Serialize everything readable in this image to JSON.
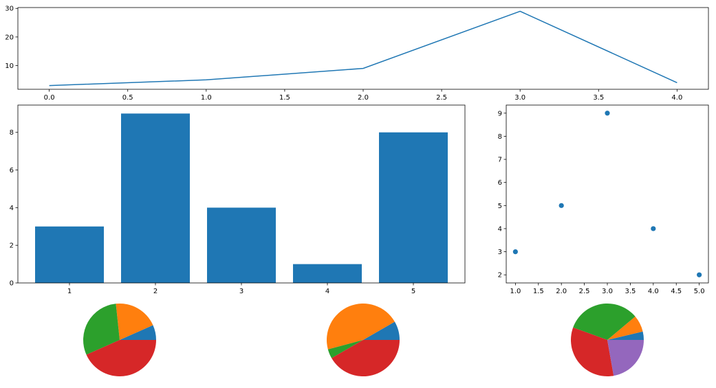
{
  "colors": {
    "c0": "#1f77b4",
    "c1": "#ff7f0e",
    "c2": "#2ca02c",
    "c3": "#d62728",
    "c4": "#9467bd"
  },
  "chart_data": [
    {
      "type": "line",
      "x": [
        0,
        1,
        2,
        3,
        4
      ],
      "y": [
        3,
        5,
        9,
        29,
        4
      ],
      "xticks": [
        "0.0",
        "0.5",
        "1.0",
        "1.5",
        "2.0",
        "2.5",
        "3.0",
        "3.5",
        "4.0"
      ],
      "yticks": [
        "10",
        "20",
        "30"
      ],
      "xlim": [
        -0.2,
        4.2
      ],
      "ylim": [
        1.7,
        30.3
      ],
      "grid": false
    },
    {
      "type": "bar",
      "categories": [
        "1",
        "2",
        "3",
        "4",
        "5"
      ],
      "values": [
        3,
        9,
        4,
        1,
        8
      ],
      "yticks": [
        "0",
        "2",
        "4",
        "6",
        "8"
      ],
      "ylim": [
        0,
        9.45
      ],
      "grid": false
    },
    {
      "type": "scatter",
      "x": [
        1,
        2,
        3,
        4,
        5
      ],
      "y": [
        3,
        5,
        9,
        4,
        2
      ],
      "xticks": [
        "1.0",
        "1.5",
        "2.0",
        "2.5",
        "3.0",
        "3.5",
        "4.0",
        "4.5",
        "5.0"
      ],
      "yticks": [
        "2",
        "3",
        "4",
        "5",
        "6",
        "7",
        "8",
        "9"
      ],
      "xlim": [
        0.8,
        5.2
      ],
      "ylim": [
        1.65,
        9.35
      ],
      "grid": false
    },
    {
      "type": "pie",
      "values": [
        2,
        6,
        9,
        13
      ],
      "startangle": 0
    },
    {
      "type": "pie",
      "values": [
        2,
        11,
        1,
        10
      ],
      "startangle": 0
    },
    {
      "type": "pie",
      "values": [
        1,
        2,
        9,
        9,
        6
      ],
      "startangle": 0
    }
  ]
}
